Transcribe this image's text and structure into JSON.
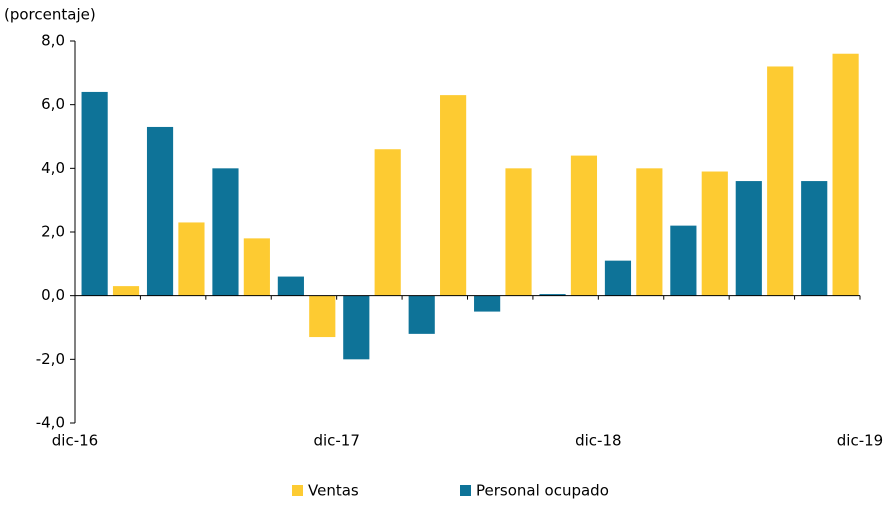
{
  "chart_data": {
    "type": "bar",
    "y_label": "(porcentaje)",
    "categories": [
      null,
      null,
      null,
      null,
      null,
      null,
      null,
      null,
      null,
      null,
      null,
      null
    ],
    "x_labels": [
      "dic-16",
      "dic-17",
      "dic-18",
      "dic-19"
    ],
    "series": [
      {
        "name": "Ventas",
        "color": "#fdcb32",
        "values": [
          0.3,
          2.3,
          1.8,
          -1.3,
          4.6,
          6.3,
          4.0,
          4.4,
          4.0,
          3.9,
          7.2,
          7.6
        ]
      },
      {
        "name": "Personal ocupado",
        "color": "#0e7398",
        "values": [
          6.4,
          5.3,
          4.0,
          0.6,
          -2.0,
          -1.2,
          -0.5,
          0.05,
          1.1,
          2.2,
          3.6,
          3.6
        ]
      }
    ],
    "ylim": [
      -4,
      8
    ],
    "yticks": [
      {
        "value": -4,
        "label": "-4,0"
      },
      {
        "value": -2,
        "label": "-2,0"
      },
      {
        "value": 0,
        "label": "0,0"
      },
      {
        "value": 2,
        "label": "2,0"
      },
      {
        "value": 4,
        "label": "4,0"
      },
      {
        "value": 6,
        "label": "6,0"
      },
      {
        "value": 8,
        "label": "8,0"
      }
    ],
    "legend": "bottom"
  }
}
